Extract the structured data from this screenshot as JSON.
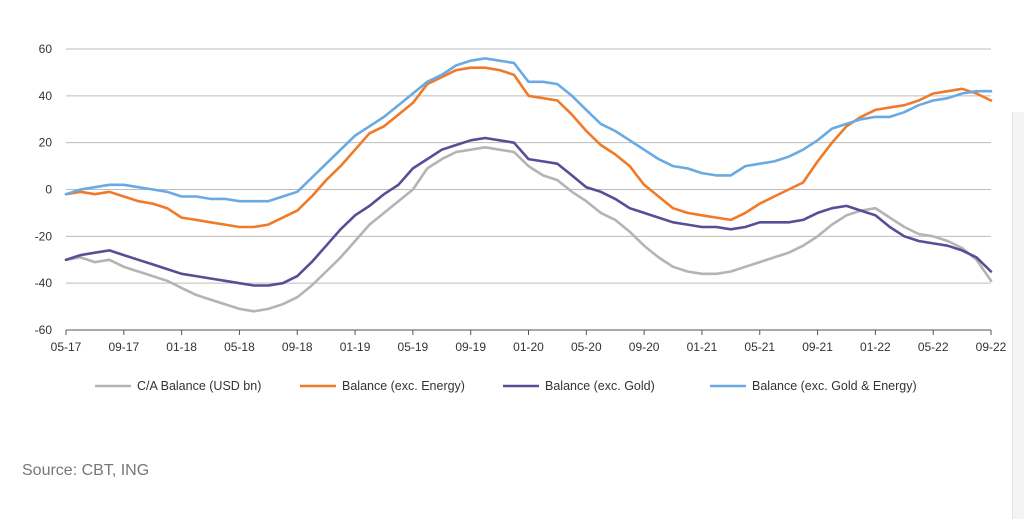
{
  "chart_data": {
    "type": "line",
    "title": "",
    "xlabel": "",
    "ylabel": "",
    "ylim": [
      -60,
      60
    ],
    "yticks": [
      60,
      40,
      20,
      0,
      -20,
      -40,
      -60
    ],
    "x_ticks": [
      "05-17",
      "09-17",
      "01-18",
      "05-18",
      "09-18",
      "01-19",
      "05-19",
      "09-19",
      "01-20",
      "05-20",
      "09-20",
      "01-21",
      "05-21",
      "09-21",
      "01-22",
      "05-22",
      "09-22"
    ],
    "x": [
      "05-17",
      "06-17",
      "07-17",
      "08-17",
      "09-17",
      "10-17",
      "11-17",
      "12-17",
      "01-18",
      "02-18",
      "03-18",
      "04-18",
      "05-18",
      "06-18",
      "07-18",
      "08-18",
      "09-18",
      "10-18",
      "11-18",
      "12-18",
      "01-19",
      "02-19",
      "03-19",
      "04-19",
      "05-19",
      "06-19",
      "07-19",
      "08-19",
      "09-19",
      "10-19",
      "11-19",
      "12-19",
      "01-20",
      "02-20",
      "03-20",
      "04-20",
      "05-20",
      "06-20",
      "07-20",
      "08-20",
      "09-20",
      "10-20",
      "11-20",
      "12-20",
      "01-21",
      "02-21",
      "03-21",
      "04-21",
      "05-21",
      "06-21",
      "07-21",
      "08-21",
      "09-21",
      "10-21",
      "11-21",
      "12-21",
      "01-22",
      "02-22",
      "03-22",
      "04-22",
      "05-22",
      "06-22",
      "07-22",
      "08-22",
      "09-22"
    ],
    "grid": true,
    "legend_position": "bottom",
    "series": [
      {
        "name": "C/A Balance (USD bn)",
        "color": "#b4b4b4",
        "values": [
          -30,
          -29,
          -31,
          -30,
          -33,
          -35,
          -37,
          -39,
          -42,
          -45,
          -47,
          -49,
          -51,
          -52,
          -51,
          -49,
          -46,
          -41,
          -35,
          -29,
          -22,
          -15,
          -10,
          -5,
          0,
          9,
          13,
          16,
          17,
          18,
          17,
          16,
          10,
          6,
          4,
          -1,
          -5,
          -10,
          -13,
          -18,
          -24,
          -29,
          -33,
          -35,
          -36,
          -36,
          -35,
          -33,
          -31,
          -29,
          -27,
          -24,
          -20,
          -15,
          -11,
          -9,
          -8,
          -12,
          -16,
          -19,
          -20,
          -22,
          -25,
          -30,
          -39
        ]
      },
      {
        "name": "Balance (exc. Energy)",
        "color": "#f07a28",
        "values": [
          -2,
          -1,
          -2,
          -1,
          -3,
          -5,
          -6,
          -8,
          -12,
          -13,
          -14,
          -15,
          -16,
          -16,
          -15,
          -12,
          -9,
          -3,
          4,
          10,
          17,
          24,
          27,
          32,
          37,
          45,
          48,
          51,
          52,
          52,
          51,
          49,
          40,
          39,
          38,
          32,
          25,
          19,
          15,
          10,
          2,
          -3,
          -8,
          -10,
          -11,
          -12,
          -13,
          -10,
          -6,
          -3,
          0,
          3,
          12,
          20,
          27,
          31,
          34,
          35,
          36,
          38,
          41,
          42,
          43,
          41,
          38
        ]
      },
      {
        "name": "Balance (exc. Gold)",
        "color": "#574e96",
        "values": [
          -30,
          -28,
          -27,
          -26,
          -28,
          -30,
          -32,
          -34,
          -36,
          -37,
          -38,
          -39,
          -40,
          -41,
          -41,
          -40,
          -37,
          -31,
          -24,
          -17,
          -11,
          -7,
          -2,
          2,
          9,
          13,
          17,
          19,
          21,
          22,
          21,
          20,
          13,
          12,
          11,
          6,
          1,
          -1,
          -4,
          -8,
          -10,
          -12,
          -14,
          -15,
          -16,
          -16,
          -17,
          -16,
          -14,
          -14,
          -14,
          -13,
          -10,
          -8,
          -7,
          -9,
          -11,
          -16,
          -20,
          -22,
          -23,
          -24,
          -26,
          -29,
          -35
        ]
      },
      {
        "name": "Balance (exc. Gold & Energy)",
        "color": "#6aaae2",
        "values": [
          -2,
          0,
          1,
          2,
          2,
          1,
          0,
          -1,
          -3,
          -3,
          -4,
          -4,
          -5,
          -5,
          -5,
          -3,
          -1,
          5,
          11,
          17,
          23,
          27,
          31,
          36,
          41,
          46,
          49,
          53,
          55,
          56,
          55,
          54,
          46,
          46,
          45,
          40,
          34,
          28,
          25,
          21,
          17,
          13,
          10,
          9,
          7,
          6,
          6,
          10,
          11,
          12,
          14,
          17,
          21,
          26,
          28,
          30,
          31,
          31,
          33,
          36,
          38,
          39,
          41,
          42,
          42
        ]
      }
    ]
  },
  "source": {
    "text": "Source: CBT, ING"
  }
}
